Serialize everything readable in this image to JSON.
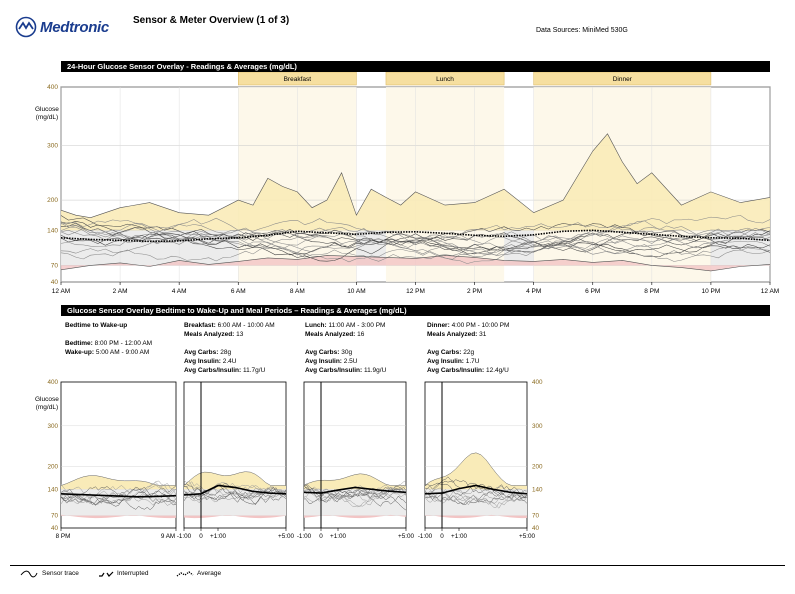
{
  "header": {
    "brand": "Medtronic",
    "title": "Sensor & Meter Overview (1 of 3)",
    "data_source": "Data Sources: MiniMed 530G"
  },
  "overlay": {
    "title": "24-Hour Glucose Sensor Overlay - Readings & Averages (mg/dL)",
    "ylabel_line1": "Glucose",
    "ylabel_line2": "(mg/dL)",
    "y_ticks": [
      "400",
      "300",
      "200",
      "140",
      "70",
      "40"
    ],
    "x_ticks": [
      "12 AM",
      "2 AM",
      "4 AM",
      "6 AM",
      "8 AM",
      "10 AM",
      "12 PM",
      "2 PM",
      "4 PM",
      "6 PM",
      "8 PM",
      "10 PM",
      "12 AM"
    ],
    "meals": [
      "Breakfast",
      "Lunch",
      "Dinner"
    ],
    "colors": {
      "meal_band": "#f6dfa0",
      "high_fill": "#f9ebb8",
      "low_fill": "#f2c4c4",
      "target_band": "#ececec",
      "tick_color": "#8a6a1f"
    }
  },
  "periods": {
    "title": "Glucose Sensor Overlay Bedtime to Wake-Up and Meal Periods – Readings & Averages (mg/dL)",
    "ylabel_line1": "Glucose",
    "ylabel_line2": "(mg/dL)",
    "y_ticks": [
      "400",
      "300",
      "200",
      "140",
      "70",
      "40"
    ],
    "bedtime": {
      "title": "Bedtime to Wake-up",
      "bed_label": "Bedtime:",
      "bed_value": "8:00 PM - 12:00 AM",
      "wake_label": "Wake-up:",
      "wake_value": "5:00 AM - 9:00 AM",
      "x_start": "8 PM",
      "x_end": "9 AM"
    },
    "meals": [
      {
        "title": "Breakfast:",
        "time": "6:00 AM - 10:00 AM",
        "analyzed_label": "Meals Analyzed:",
        "analyzed": "13",
        "carbs_label": "Avg Carbs:",
        "carbs": "28g",
        "insulin_label": "Avg Insulin:",
        "insulin": "2.4U",
        "ratio_label": "Avg Carbs/Insulin:",
        "ratio": "11.7g/U"
      },
      {
        "title": "Lunch:",
        "time": "11:00 AM - 3:00 PM",
        "analyzed_label": "Meals Analyzed:",
        "analyzed": "16",
        "carbs_label": "Avg Carbs:",
        "carbs": "30g",
        "insulin_label": "Avg Insulin:",
        "insulin": "2.5U",
        "ratio_label": "Avg Carbs/Insulin:",
        "ratio": "11.9g/U"
      },
      {
        "title": "Dinner:",
        "time": "4:00 PM - 10:00 PM",
        "analyzed_label": "Meals Analyzed:",
        "analyzed": "31",
        "carbs_label": "Avg Carbs:",
        "carbs": "22g",
        "insulin_label": "Avg Insulin:",
        "insulin": "1.7U",
        "ratio_label": "Avg Carbs/Insulin:",
        "ratio": "12.4g/U"
      }
    ],
    "meal_x_ticks": [
      "-1:00",
      "0",
      "+1:00",
      "+5:00"
    ]
  },
  "legend": {
    "sensor_trace": "Sensor trace",
    "interrupted": "Interrupted",
    "average": "Average"
  },
  "chart_data": [
    {
      "type": "line",
      "title": "24-Hour Glucose Sensor Overlay - Readings & Averages (mg/dL)",
      "xlabel": "",
      "ylabel": "Glucose (mg/dL)",
      "ylim": [
        40,
        400
      ],
      "x_unit": "hour of day",
      "xlim": [
        0,
        24
      ],
      "target_range": [
        70,
        140
      ],
      "meal_periods": [
        {
          "name": "Breakfast",
          "start": 6,
          "end": 10
        },
        {
          "name": "Lunch",
          "start": 11,
          "end": 15
        },
        {
          "name": "Dinner",
          "start": 16,
          "end": 22
        }
      ],
      "series": [
        {
          "name": "Average",
          "x": [
            0,
            1,
            2,
            3,
            4,
            5,
            6,
            7,
            8,
            9,
            10,
            11,
            12,
            13,
            14,
            15,
            16,
            17,
            18,
            19,
            20,
            21,
            22,
            23,
            24
          ],
          "values": [
            125,
            122,
            120,
            118,
            119,
            123,
            125,
            130,
            138,
            135,
            132,
            136,
            137,
            134,
            130,
            128,
            131,
            138,
            140,
            136,
            132,
            128,
            125,
            124,
            120
          ]
        },
        {
          "name": "Upper envelope",
          "x": [
            0,
            0.5,
            1,
            1.5,
            2,
            3,
            4,
            5,
            6,
            6.5,
            7,
            7.5,
            8,
            8.5,
            9,
            9.5,
            10,
            10.5,
            11,
            11.5,
            12,
            13,
            14,
            15,
            16,
            17,
            17.5,
            18,
            18.5,
            19,
            19.5,
            20,
            21,
            22,
            23,
            24
          ],
          "values": [
            180,
            170,
            165,
            175,
            185,
            195,
            175,
            170,
            200,
            190,
            240,
            225,
            215,
            185,
            200,
            250,
            170,
            220,
            205,
            190,
            215,
            190,
            195,
            220,
            175,
            200,
            245,
            290,
            320,
            270,
            230,
            250,
            190,
            215,
            195,
            205
          ]
        },
        {
          "name": "Lower envelope",
          "x": [
            0,
            1,
            2,
            3,
            4,
            5,
            6,
            7,
            8,
            9,
            10,
            11,
            12,
            13,
            14,
            15,
            16,
            17,
            18,
            19,
            20,
            21,
            22,
            23,
            24
          ],
          "values": [
            62,
            70,
            75,
            68,
            80,
            72,
            78,
            85,
            82,
            90,
            88,
            86,
            84,
            90,
            86,
            80,
            78,
            82,
            76,
            80,
            70,
            66,
            60,
            68,
            72
          ]
        }
      ]
    },
    {
      "type": "line",
      "title": "Bedtime to Wake-up",
      "ylim": [
        40,
        400
      ],
      "xlim_labels": [
        "8 PM",
        "9 AM"
      ],
      "target_range": [
        70,
        140
      ],
      "series": [
        {
          "name": "Average",
          "values": [
            128,
            126,
            124,
            122,
            120,
            121,
            123
          ]
        }
      ]
    },
    {
      "type": "line",
      "title": "Breakfast: 6:00 AM - 10:00 AM",
      "ylim": [
        40,
        400
      ],
      "x_hours_rel_meal": [
        -1,
        5
      ],
      "target_range": [
        70,
        140
      ],
      "series": [
        {
          "name": "Average",
          "x": [
            -1,
            0,
            1,
            2,
            3,
            4,
            5
          ],
          "values": [
            125,
            128,
            150,
            145,
            135,
            130,
            128
          ]
        }
      ]
    },
    {
      "type": "line",
      "title": "Lunch: 11:00 AM - 3:00 PM",
      "ylim": [
        40,
        400
      ],
      "x_hours_rel_meal": [
        -1,
        5
      ],
      "target_range": [
        70,
        140
      ],
      "series": [
        {
          "name": "Average",
          "x": [
            -1,
            0,
            1,
            2,
            3,
            4,
            5
          ],
          "values": [
            132,
            130,
            138,
            145,
            140,
            135,
            132
          ]
        }
      ]
    },
    {
      "type": "line",
      "title": "Dinner: 4:00 PM - 10:00 PM",
      "ylim": [
        40,
        400
      ],
      "x_hours_rel_meal": [
        -1,
        5
      ],
      "target_range": [
        70,
        140
      ],
      "series": [
        {
          "name": "Average",
          "x": [
            -1,
            0,
            1,
            2,
            3,
            4,
            5
          ],
          "values": [
            128,
            130,
            142,
            150,
            140,
            132,
            128
          ]
        }
      ]
    }
  ]
}
